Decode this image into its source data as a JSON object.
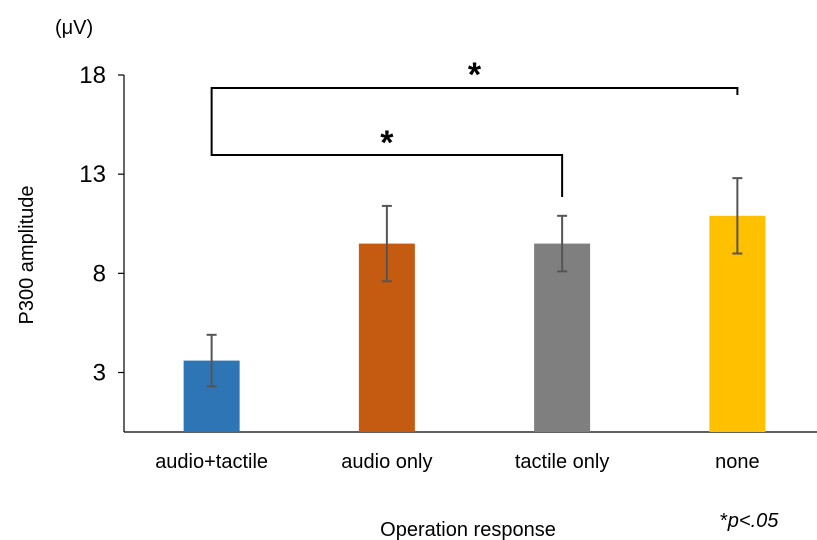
{
  "chart_data": {
    "type": "bar",
    "categories": [
      "audio+tactile",
      "audio only",
      "tactile only",
      "none"
    ],
    "values": [
      3.6,
      9.5,
      9.5,
      10.9
    ],
    "error_low": [
      2.3,
      7.6,
      8.1,
      9.0
    ],
    "error_high": [
      4.9,
      11.4,
      10.9,
      12.8
    ],
    "colors": [
      "#2E75B6",
      "#C55A11",
      "#7F7F7F",
      "#FFC000"
    ],
    "ylim": [
      0,
      18
    ],
    "yticks": [
      3,
      8,
      13,
      18
    ],
    "ylabel": "P300 amplitude",
    "xlabel": "Operation response",
    "unit": "(μV)",
    "grid": false,
    "significance": [
      {
        "from": 0,
        "to": 3,
        "label": "*"
      },
      {
        "from": 0,
        "to": 2,
        "label": "*"
      }
    ],
    "note": {
      "mark": "*",
      "text": "p<.05"
    }
  }
}
